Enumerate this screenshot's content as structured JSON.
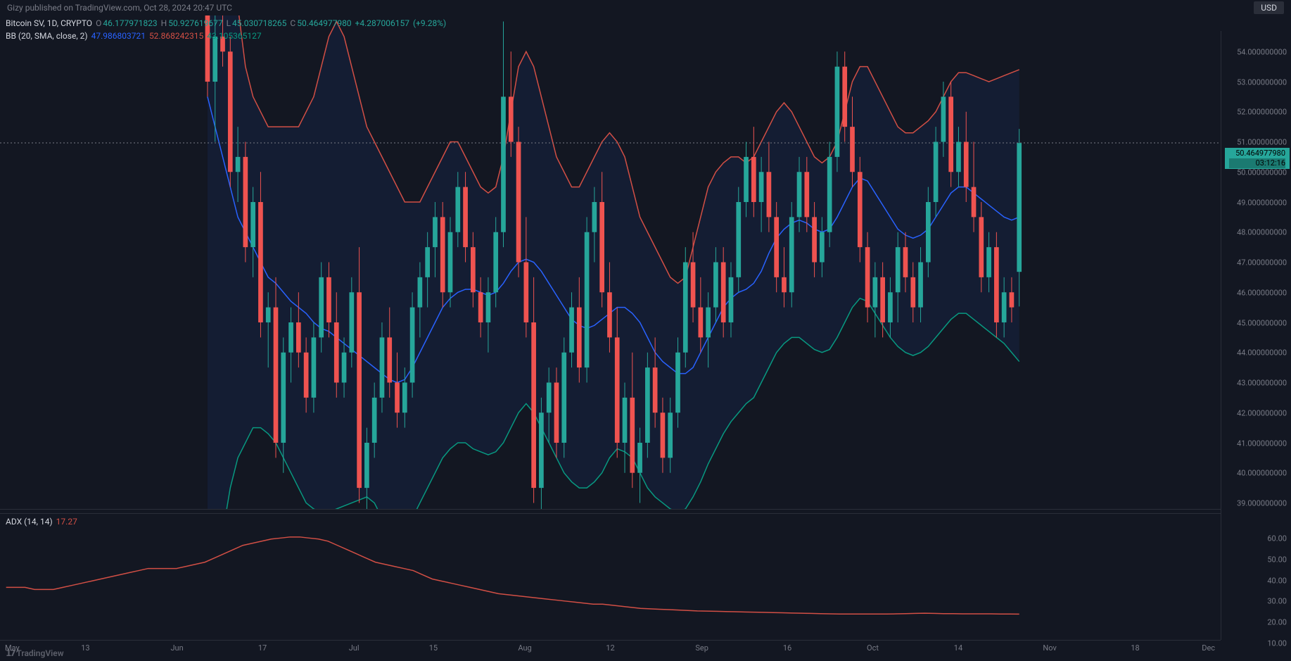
{
  "meta": {
    "publisher": "Gizy",
    "published_text": "Gizy published on TradingView.com, Oct 28, 2024 20:47 UTC",
    "currency_badge": "USD",
    "branding": "TradingView"
  },
  "symbol": {
    "title": "Bitcoin SV, 1D, CRYPTO",
    "ohlc": {
      "O_label": "O",
      "O": "46.177971823",
      "H_label": "H",
      "H": "50.927619677",
      "L_label": "L",
      "L": "45.030718265",
      "C_label": "C",
      "C": "50.464977980",
      "change": "+4.287006157",
      "pct": "(+9.28%)"
    }
  },
  "bb": {
    "label": "BB (20, SMA, close, 2)",
    "mid": "47.986803721",
    "upper": "52.868242315",
    "lower": "43.105365127"
  },
  "adx": {
    "label": "ADX (14, 14)",
    "value": "17.27"
  },
  "colors": {
    "bg": "#131722",
    "up": "#26a69a",
    "down": "#ef5350",
    "bb_upper": "#d24f45",
    "bb_mid": "#2962ff",
    "bb_lower": "#089981",
    "bb_fill": "rgba(41,98,255,0.08)",
    "adx_line": "#d24f45",
    "text_muted": "#787b86",
    "info_value": "#26a69a"
  },
  "price_axis": {
    "min": 38.3,
    "max": 54.7,
    "ticks": [
      39,
      40,
      41,
      42,
      43,
      44,
      45,
      46,
      47,
      48,
      49,
      50,
      51,
      52,
      53,
      54
    ],
    "current_price": "50.464977980",
    "countdown": "03:12:16"
  },
  "adx_axis": {
    "min": 5,
    "max": 65,
    "ticks": [
      10,
      20,
      30,
      40,
      50,
      60
    ]
  },
  "time_axis": {
    "labels": [
      {
        "xpct": 1.0,
        "text": "May"
      },
      {
        "xpct": 7.0,
        "text": "13"
      },
      {
        "xpct": 14.5,
        "text": "Jun"
      },
      {
        "xpct": 21.5,
        "text": "17"
      },
      {
        "xpct": 29.0,
        "text": "Jul"
      },
      {
        "xpct": 35.5,
        "text": "15"
      },
      {
        "xpct": 43.0,
        "text": "Aug"
      },
      {
        "xpct": 50.0,
        "text": "12"
      },
      {
        "xpct": 57.5,
        "text": "Sep"
      },
      {
        "xpct": 64.5,
        "text": "16"
      },
      {
        "xpct": 71.5,
        "text": "Oct"
      },
      {
        "xpct": 78.5,
        "text": "14"
      },
      {
        "xpct": 86.0,
        "text": "Nov"
      },
      {
        "xpct": 93.0,
        "text": "18"
      },
      {
        "xpct": 99.0,
        "text": "Dec"
      }
    ]
  },
  "candles": [
    {
      "o": 57.5,
      "h": 58.0,
      "l": 52.0,
      "c": 52.5
    },
    {
      "o": 52.5,
      "h": 55.0,
      "l": 50.5,
      "c": 54.0
    },
    {
      "o": 54.0,
      "h": 56.5,
      "l": 53.0,
      "c": 53.5
    },
    {
      "o": 53.5,
      "h": 54.0,
      "l": 49.0,
      "c": 49.5
    },
    {
      "o": 49.5,
      "h": 51.0,
      "l": 48.5,
      "c": 50.0
    },
    {
      "o": 50.0,
      "h": 50.5,
      "l": 46.5,
      "c": 47.0
    },
    {
      "o": 47.0,
      "h": 49.0,
      "l": 46.0,
      "c": 48.5
    },
    {
      "o": 48.5,
      "h": 49.5,
      "l": 44.0,
      "c": 44.5
    },
    {
      "o": 44.5,
      "h": 45.5,
      "l": 43.0,
      "c": 45.0
    },
    {
      "o": 45.0,
      "h": 46.0,
      "l": 40.0,
      "c": 40.5
    },
    {
      "o": 40.5,
      "h": 44.0,
      "l": 39.5,
      "c": 43.5
    },
    {
      "o": 43.5,
      "h": 45.0,
      "l": 42.5,
      "c": 44.5
    },
    {
      "o": 44.5,
      "h": 45.5,
      "l": 43.0,
      "c": 43.5
    },
    {
      "o": 43.5,
      "h": 44.0,
      "l": 41.5,
      "c": 42.0
    },
    {
      "o": 42.0,
      "h": 44.5,
      "l": 41.5,
      "c": 44.0
    },
    {
      "o": 44.0,
      "h": 46.5,
      "l": 43.5,
      "c": 46.0
    },
    {
      "o": 46.0,
      "h": 46.5,
      "l": 44.0,
      "c": 44.5
    },
    {
      "o": 44.5,
      "h": 45.5,
      "l": 42.0,
      "c": 42.5
    },
    {
      "o": 42.5,
      "h": 44.0,
      "l": 42.0,
      "c": 43.5
    },
    {
      "o": 43.5,
      "h": 46.0,
      "l": 43.0,
      "c": 45.5
    },
    {
      "o": 45.5,
      "h": 47.0,
      "l": 38.5,
      "c": 39.0
    },
    {
      "o": 39.0,
      "h": 41.0,
      "l": 38.0,
      "c": 40.5
    },
    {
      "o": 40.5,
      "h": 42.5,
      "l": 40.0,
      "c": 42.0
    },
    {
      "o": 42.0,
      "h": 44.5,
      "l": 41.5,
      "c": 44.0
    },
    {
      "o": 44.0,
      "h": 45.0,
      "l": 42.0,
      "c": 42.5
    },
    {
      "o": 42.5,
      "h": 43.5,
      "l": 41.0,
      "c": 41.5
    },
    {
      "o": 41.5,
      "h": 43.0,
      "l": 41.0,
      "c": 42.5
    },
    {
      "o": 42.5,
      "h": 45.5,
      "l": 42.0,
      "c": 45.0
    },
    {
      "o": 45.0,
      "h": 46.5,
      "l": 44.0,
      "c": 46.0
    },
    {
      "o": 46.0,
      "h": 47.5,
      "l": 45.0,
      "c": 47.0
    },
    {
      "o": 47.0,
      "h": 48.5,
      "l": 46.0,
      "c": 48.0
    },
    {
      "o": 48.0,
      "h": 48.5,
      "l": 45.0,
      "c": 45.5
    },
    {
      "o": 45.5,
      "h": 48.0,
      "l": 45.0,
      "c": 47.5
    },
    {
      "o": 47.5,
      "h": 49.5,
      "l": 47.0,
      "c": 49.0
    },
    {
      "o": 49.0,
      "h": 49.5,
      "l": 46.5,
      "c": 47.0
    },
    {
      "o": 47.0,
      "h": 47.5,
      "l": 45.0,
      "c": 45.5
    },
    {
      "o": 45.5,
      "h": 46.0,
      "l": 44.0,
      "c": 44.5
    },
    {
      "o": 44.5,
      "h": 46.0,
      "l": 43.5,
      "c": 45.5
    },
    {
      "o": 45.5,
      "h": 48.0,
      "l": 45.0,
      "c": 47.5
    },
    {
      "o": 47.5,
      "h": 54.5,
      "l": 47.0,
      "c": 52.0
    },
    {
      "o": 52.0,
      "h": 53.5,
      "l": 50.0,
      "c": 50.5
    },
    {
      "o": 50.5,
      "h": 51.0,
      "l": 46.0,
      "c": 46.5
    },
    {
      "o": 46.5,
      "h": 48.0,
      "l": 44.0,
      "c": 44.5
    },
    {
      "o": 44.5,
      "h": 46.0,
      "l": 38.5,
      "c": 39.0
    },
    {
      "o": 39.0,
      "h": 42.0,
      "l": 38.0,
      "c": 41.5
    },
    {
      "o": 41.5,
      "h": 43.0,
      "l": 40.5,
      "c": 42.5
    },
    {
      "o": 42.5,
      "h": 43.0,
      "l": 40.0,
      "c": 40.5
    },
    {
      "o": 40.5,
      "h": 44.0,
      "l": 40.0,
      "c": 43.5
    },
    {
      "o": 43.5,
      "h": 45.5,
      "l": 43.0,
      "c": 45.0
    },
    {
      "o": 45.0,
      "h": 46.0,
      "l": 42.5,
      "c": 43.0
    },
    {
      "o": 43.0,
      "h": 48.0,
      "l": 42.5,
      "c": 47.5
    },
    {
      "o": 47.5,
      "h": 49.0,
      "l": 46.5,
      "c": 48.5
    },
    {
      "o": 48.5,
      "h": 49.5,
      "l": 45.0,
      "c": 45.5
    },
    {
      "o": 45.5,
      "h": 46.5,
      "l": 43.5,
      "c": 44.0
    },
    {
      "o": 44.0,
      "h": 45.0,
      "l": 40.0,
      "c": 40.5
    },
    {
      "o": 40.5,
      "h": 42.5,
      "l": 39.5,
      "c": 42.0
    },
    {
      "o": 42.0,
      "h": 43.5,
      "l": 39.0,
      "c": 39.5
    },
    {
      "o": 39.5,
      "h": 41.0,
      "l": 38.5,
      "c": 40.5
    },
    {
      "o": 40.5,
      "h": 43.5,
      "l": 40.0,
      "c": 43.0
    },
    {
      "o": 43.0,
      "h": 44.0,
      "l": 41.0,
      "c": 41.5
    },
    {
      "o": 41.5,
      "h": 42.0,
      "l": 39.5,
      "c": 40.0
    },
    {
      "o": 40.0,
      "h": 42.0,
      "l": 39.5,
      "c": 41.5
    },
    {
      "o": 41.5,
      "h": 44.0,
      "l": 41.0,
      "c": 43.5
    },
    {
      "o": 43.5,
      "h": 47.0,
      "l": 43.0,
      "c": 46.5
    },
    {
      "o": 46.5,
      "h": 47.5,
      "l": 44.5,
      "c": 45.0
    },
    {
      "o": 45.0,
      "h": 46.0,
      "l": 43.5,
      "c": 44.0
    },
    {
      "o": 44.0,
      "h": 45.5,
      "l": 43.0,
      "c": 45.0
    },
    {
      "o": 45.0,
      "h": 47.0,
      "l": 44.5,
      "c": 46.5
    },
    {
      "o": 46.5,
      "h": 47.0,
      "l": 44.0,
      "c": 44.5
    },
    {
      "o": 44.5,
      "h": 46.5,
      "l": 44.0,
      "c": 46.0
    },
    {
      "o": 46.0,
      "h": 49.0,
      "l": 45.5,
      "c": 48.5
    },
    {
      "o": 48.5,
      "h": 50.5,
      "l": 48.0,
      "c": 50.0
    },
    {
      "o": 50.0,
      "h": 51.0,
      "l": 48.0,
      "c": 48.5
    },
    {
      "o": 48.5,
      "h": 50.0,
      "l": 47.5,
      "c": 49.5
    },
    {
      "o": 49.5,
      "h": 50.5,
      "l": 47.5,
      "c": 48.0
    },
    {
      "o": 48.0,
      "h": 48.5,
      "l": 45.5,
      "c": 46.0
    },
    {
      "o": 46.0,
      "h": 47.0,
      "l": 45.0,
      "c": 45.5
    },
    {
      "o": 45.5,
      "h": 48.5,
      "l": 45.0,
      "c": 48.0
    },
    {
      "o": 48.0,
      "h": 50.0,
      "l": 47.5,
      "c": 49.5
    },
    {
      "o": 49.5,
      "h": 50.0,
      "l": 47.5,
      "c": 48.0
    },
    {
      "o": 48.0,
      "h": 48.5,
      "l": 46.0,
      "c": 46.5
    },
    {
      "o": 46.5,
      "h": 48.0,
      "l": 46.0,
      "c": 47.5
    },
    {
      "o": 47.5,
      "h": 50.5,
      "l": 47.0,
      "c": 50.0
    },
    {
      "o": 50.0,
      "h": 53.5,
      "l": 49.5,
      "c": 53.0
    },
    {
      "o": 53.0,
      "h": 53.5,
      "l": 50.5,
      "c": 51.0
    },
    {
      "o": 51.0,
      "h": 52.0,
      "l": 49.0,
      "c": 49.5
    },
    {
      "o": 49.5,
      "h": 50.0,
      "l": 46.5,
      "c": 47.0
    },
    {
      "o": 47.0,
      "h": 47.5,
      "l": 44.5,
      "c": 45.0
    },
    {
      "o": 45.0,
      "h": 46.5,
      "l": 44.0,
      "c": 46.0
    },
    {
      "o": 46.0,
      "h": 46.5,
      "l": 44.0,
      "c": 44.5
    },
    {
      "o": 44.5,
      "h": 46.0,
      "l": 44.0,
      "c": 45.5
    },
    {
      "o": 45.5,
      "h": 47.5,
      "l": 44.5,
      "c": 47.0
    },
    {
      "o": 47.0,
      "h": 47.5,
      "l": 45.5,
      "c": 46.0
    },
    {
      "o": 46.0,
      "h": 46.5,
      "l": 44.5,
      "c": 45.0
    },
    {
      "o": 45.0,
      "h": 47.0,
      "l": 44.5,
      "c": 46.5
    },
    {
      "o": 46.5,
      "h": 49.0,
      "l": 46.0,
      "c": 48.5
    },
    {
      "o": 48.5,
      "h": 51.0,
      "l": 48.0,
      "c": 50.5
    },
    {
      "o": 50.5,
      "h": 52.5,
      "l": 50.0,
      "c": 52.0
    },
    {
      "o": 52.0,
      "h": 52.5,
      "l": 49.0,
      "c": 49.5
    },
    {
      "o": 49.5,
      "h": 51.0,
      "l": 49.0,
      "c": 50.5
    },
    {
      "o": 50.5,
      "h": 51.5,
      "l": 48.5,
      "c": 49.0
    },
    {
      "o": 49.0,
      "h": 50.5,
      "l": 47.5,
      "c": 48.0
    },
    {
      "o": 48.0,
      "h": 48.5,
      "l": 45.5,
      "c": 46.0
    },
    {
      "o": 46.0,
      "h": 47.5,
      "l": 45.5,
      "c": 47.0
    },
    {
      "o": 47.0,
      "h": 47.5,
      "l": 44.0,
      "c": 44.5
    },
    {
      "o": 44.5,
      "h": 46.0,
      "l": 44.0,
      "c": 45.5
    },
    {
      "o": 45.5,
      "h": 46.0,
      "l": 44.5,
      "c": 45.0
    },
    {
      "o": 46.18,
      "h": 50.93,
      "l": 45.03,
      "c": 50.46
    }
  ],
  "candles_start_pct": 17.0,
  "candles_end_pct": 83.5,
  "bb_upper": [
    70,
    66,
    62,
    58,
    55,
    53,
    52,
    51.5,
    51,
    51,
    51,
    51,
    51,
    51.5,
    52,
    53,
    54,
    54.5,
    54,
    53,
    52,
    51,
    50.5,
    50,
    49.5,
    49,
    48.5,
    48.5,
    48.5,
    49,
    49.5,
    50,
    50.5,
    50.5,
    50,
    49.5,
    49,
    48.8,
    49,
    50,
    51.5,
    53,
    53.5,
    53,
    52,
    51,
    50,
    49.5,
    49,
    49,
    49.5,
    50,
    50.5,
    50.8,
    50.5,
    50,
    49,
    48,
    47.5,
    47,
    46.5,
    46,
    45.8,
    46,
    47,
    48,
    49,
    49.5,
    49.8,
    50,
    50,
    49.8,
    50,
    50.5,
    51,
    51.5,
    51.8,
    51.5,
    51,
    50.5,
    50,
    49.8,
    50,
    50.5,
    51.5,
    52.5,
    53,
    53,
    52.5,
    52,
    51.5,
    51,
    50.8,
    50.8,
    51,
    51.2,
    51.5,
    52,
    52.5,
    52.8,
    52.8,
    52.7,
    52.6,
    52.5,
    52.6,
    52.7,
    52.8,
    52.9
  ],
  "bb_mid": [
    52,
    51,
    50,
    49,
    48,
    47.5,
    47,
    46.5,
    46,
    45.8,
    45.5,
    45.2,
    45,
    44.8,
    44.5,
    44.3,
    44.2,
    44,
    43.8,
    43.6,
    43.4,
    43.2,
    43,
    42.8,
    42.6,
    42.5,
    42.6,
    43,
    43.5,
    44,
    44.5,
    45,
    45.3,
    45.5,
    45.6,
    45.6,
    45.5,
    45.4,
    45.5,
    45.8,
    46.2,
    46.5,
    46.6,
    46.5,
    46.2,
    45.8,
    45.4,
    45,
    44.6,
    44.4,
    44.3,
    44.4,
    44.6,
    44.8,
    45,
    45,
    44.8,
    44.5,
    44,
    43.5,
    43.2,
    43,
    42.8,
    42.8,
    43,
    43.5,
    44,
    44.5,
    45,
    45.3,
    45.5,
    45.6,
    45.8,
    46.2,
    46.8,
    47.3,
    47.6,
    47.8,
    47.9,
    47.8,
    47.6,
    47.5,
    47.6,
    48,
    48.5,
    49,
    49.3,
    49.2,
    48.8,
    48.4,
    48,
    47.6,
    47.4,
    47.3,
    47.4,
    47.6,
    48,
    48.4,
    48.8,
    49,
    49,
    48.8,
    48.6,
    48.4,
    48.2,
    48,
    47.9,
    48
  ],
  "bb_lower": [
    34,
    36,
    37.5,
    39,
    40,
    40.5,
    41,
    41,
    40.8,
    40.5,
    40,
    39.5,
    39,
    38.5,
    38.3,
    38.2,
    38.2,
    38.3,
    38.4,
    38.5,
    38.6,
    38.7,
    38.5,
    38,
    37.5,
    37.3,
    37.5,
    38,
    38.5,
    39,
    39.5,
    40,
    40.3,
    40.5,
    40.5,
    40.3,
    40.2,
    40.1,
    40.2,
    40.5,
    41,
    41.5,
    41.8,
    41.5,
    41,
    40.5,
    40,
    39.5,
    39.2,
    39,
    39,
    39.2,
    39.5,
    40,
    40.3,
    40.2,
    40,
    39.5,
    39,
    38.7,
    38.5,
    38.3,
    38.2,
    38.3,
    38.7,
    39.2,
    39.8,
    40.3,
    40.8,
    41.2,
    41.5,
    41.8,
    42,
    42.5,
    43,
    43.5,
    43.8,
    44,
    44,
    43.8,
    43.6,
    43.5,
    43.6,
    44,
    44.5,
    45,
    45.3,
    45.2,
    44.8,
    44.4,
    44,
    43.7,
    43.5,
    43.4,
    43.5,
    43.7,
    44,
    44.3,
    44.6,
    44.8,
    44.8,
    44.6,
    44.4,
    44.2,
    44,
    43.8,
    43.5,
    43.2
  ],
  "adx_line": [
    30,
    30,
    30,
    29,
    29,
    29,
    30,
    31,
    32,
    33,
    34,
    35,
    36,
    37,
    38,
    39,
    39,
    39,
    39,
    40,
    41,
    42,
    44,
    46,
    48,
    50,
    51,
    52,
    53,
    53.5,
    54,
    54,
    53.5,
    53,
    52,
    50,
    48,
    46,
    44,
    42,
    41,
    40,
    39,
    38,
    36,
    34,
    33,
    32,
    31,
    30,
    29,
    28,
    27,
    26.5,
    26,
    25.5,
    25,
    24.5,
    24,
    23.5,
    23,
    22.5,
    22,
    22,
    21.5,
    21,
    20.5,
    20,
    19.8,
    19.6,
    19.4,
    19.2,
    19,
    18.8,
    18.7,
    18.6,
    18.5,
    18.4,
    18.3,
    18.2,
    18.1,
    18,
    17.9,
    17.8,
    17.7,
    17.6,
    17.5,
    17.4,
    17.3,
    17.3,
    17.3,
    17.3,
    17.3,
    17.3,
    17.4,
    17.5,
    17.6,
    17.7,
    17.6,
    17.5,
    17.5,
    17.4,
    17.4,
    17.4,
    17.4,
    17.3,
    17.3,
    17.27
  ],
  "adx_start_pct": 0.5,
  "adx_end_pct": 83.5
}
